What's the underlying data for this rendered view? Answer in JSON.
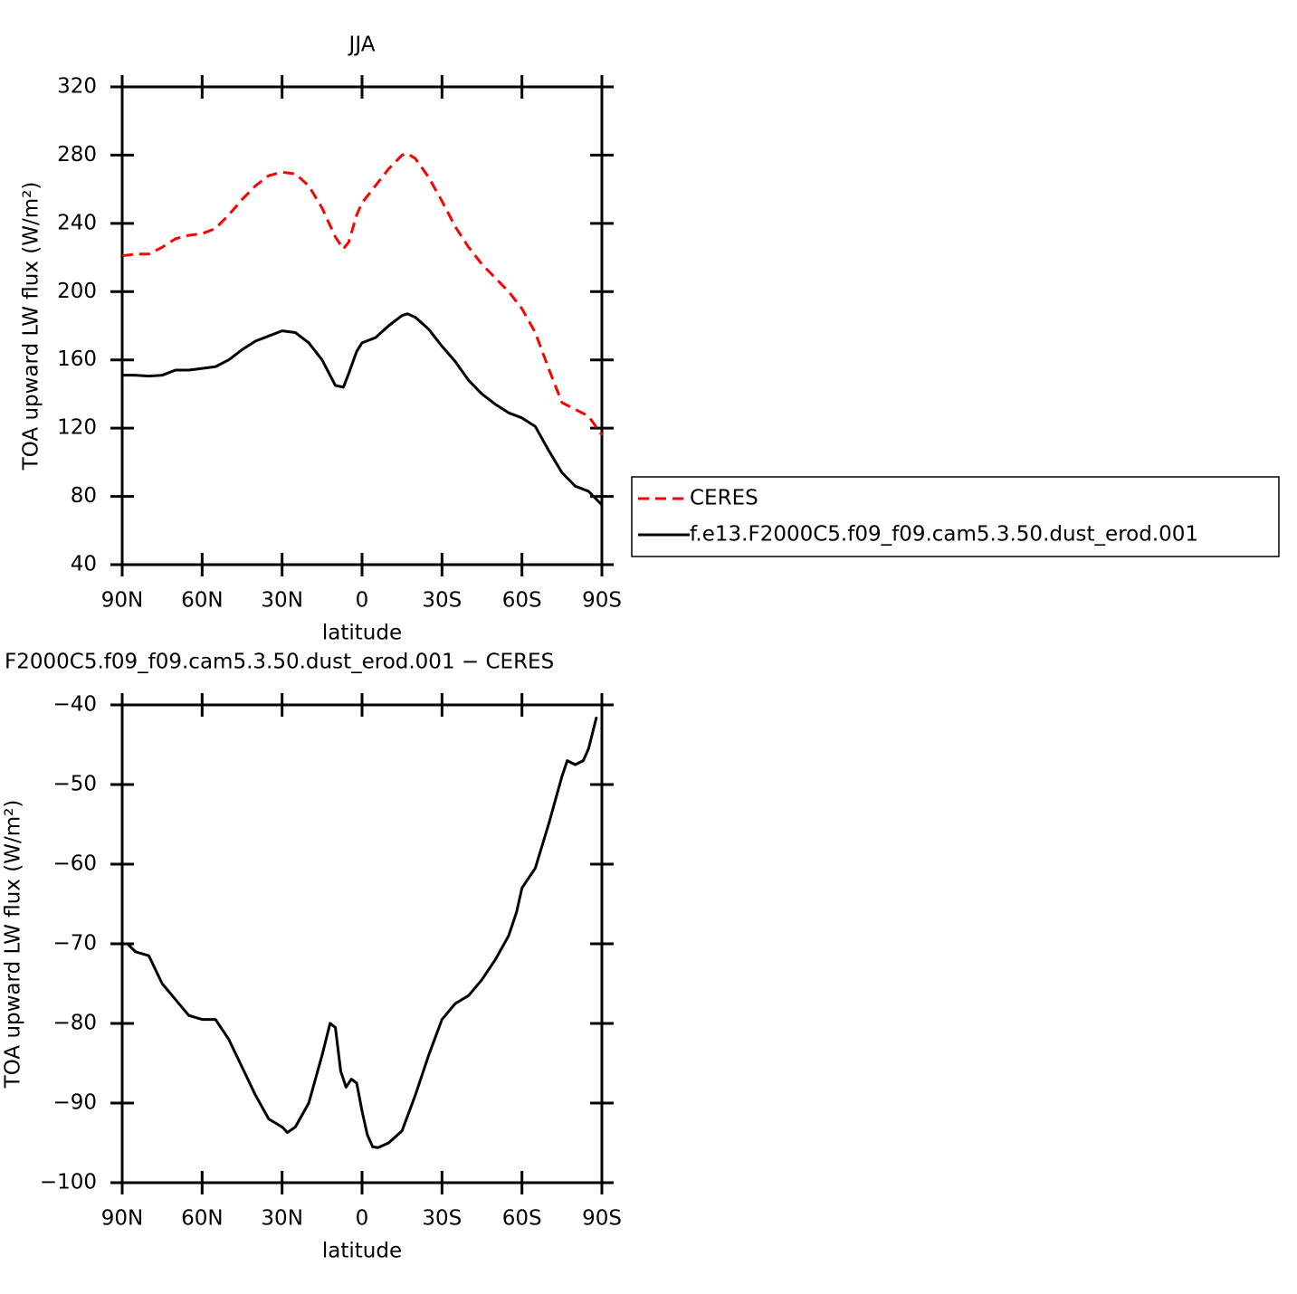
{
  "chart_data": [
    {
      "type": "line",
      "title": "JJA",
      "xlabel": "latitude",
      "ylabel": "TOA upward LW flux (W/m²)",
      "x": [
        90,
        85,
        80,
        75,
        70,
        65,
        60,
        55,
        50,
        45,
        40,
        35,
        30,
        25,
        20,
        15,
        10,
        7,
        5,
        2,
        0,
        -5,
        -10,
        -15,
        -17,
        -20,
        -25,
        -30,
        -35,
        -40,
        -45,
        -50,
        -55,
        -60,
        -65,
        -70,
        -75,
        -80,
        -85,
        -90
      ],
      "series": [
        {
          "name": "CERES",
          "color": "#ff0000",
          "dash": true,
          "values": [
            221,
            222,
            222,
            226,
            231,
            233,
            234,
            237,
            245,
            254,
            262,
            268,
            270,
            269,
            262,
            249,
            232,
            225,
            229,
            245,
            252,
            262,
            272,
            280,
            281,
            278,
            267,
            253,
            238,
            226,
            216,
            208,
            200,
            190,
            176,
            155,
            135,
            131,
            127,
            116
          ]
        },
        {
          "name": "f.e13.F2000C5.f09_f09.cam5.3.50.dust_erod.001",
          "color": "#000000",
          "dash": false,
          "values": [
            151,
            151,
            150.5,
            151,
            154,
            154,
            155,
            156,
            160,
            166,
            171,
            174,
            177,
            176,
            170,
            160,
            145,
            144,
            152,
            165,
            170,
            173,
            180,
            186,
            187,
            185,
            178,
            168,
            159,
            148,
            140,
            134,
            129,
            126,
            121,
            107,
            94,
            86,
            83,
            75
          ]
        }
      ],
      "xlim": [
        90,
        -90
      ],
      "xticks": [
        {
          "value": 90,
          "label": "90N"
        },
        {
          "value": 60,
          "label": "60N"
        },
        {
          "value": 30,
          "label": "30N"
        },
        0,
        {
          "value": -30,
          "label": "30S"
        },
        {
          "value": -60,
          "label": "60S"
        },
        {
          "value": -90,
          "label": "90S"
        }
      ],
      "ylim": [
        40,
        320
      ],
      "yticks": [
        40,
        80,
        120,
        160,
        200,
        240,
        280,
        320
      ],
      "legend": "right"
    },
    {
      "type": "line",
      "title": "F2000C5.f09_f09.cam5.3.50.dust_erod.001 − CERES",
      "xlabel": "latitude",
      "ylabel": "TOA upward LW flux (W/m²)",
      "x": [
        88,
        85,
        80,
        75,
        70,
        65,
        60,
        55,
        50,
        45,
        40,
        35,
        30,
        28,
        25,
        20,
        15,
        12,
        10,
        8,
        6,
        4,
        2,
        0,
        -2,
        -4,
        -6,
        -10,
        -15,
        -20,
        -25,
        -30,
        -35,
        -40,
        -45,
        -50,
        -55,
        -58,
        -60,
        -62,
        -65,
        -70,
        -75,
        -77,
        -80,
        -83,
        -85,
        -88
      ],
      "series": [
        {
          "color": "#000000",
          "dash": false,
          "values": [
            -70,
            -71,
            -71.5,
            -75,
            -77,
            -79,
            -79.5,
            -79.5,
            -82,
            -85.5,
            -89,
            -92,
            -93,
            -93.7,
            -93,
            -90,
            -84,
            -80,
            -80.5,
            -86,
            -88,
            -87,
            -87.5,
            -91,
            -94,
            -95.5,
            -95.6,
            -95,
            -93.5,
            -89,
            -84,
            -79.5,
            -77.5,
            -76.5,
            -74.5,
            -72,
            -69,
            -66,
            -63,
            -62,
            -60.5,
            -55,
            -49,
            -47,
            -47.5,
            -47,
            -45.5,
            -41.5
          ]
        }
      ],
      "xlim": [
        90,
        -90
      ],
      "xticks": [
        {
          "value": 90,
          "label": "90N"
        },
        {
          "value": 60,
          "label": "60N"
        },
        {
          "value": 30,
          "label": "30N"
        },
        0,
        {
          "value": -30,
          "label": "30S"
        },
        {
          "value": -60,
          "label": "60S"
        },
        {
          "value": -90,
          "label": "90S"
        }
      ],
      "ylim": [
        -100,
        -40
      ],
      "yticks": [
        {
          "value": -100,
          "label": "−100"
        },
        {
          "value": -90,
          "label": "−90"
        },
        {
          "value": -80,
          "label": "−80"
        },
        {
          "value": -70,
          "label": "−70"
        },
        {
          "value": -60,
          "label": "−60"
        },
        {
          "value": -50,
          "label": "−50"
        },
        {
          "value": -40,
          "label": "−40"
        }
      ]
    }
  ]
}
